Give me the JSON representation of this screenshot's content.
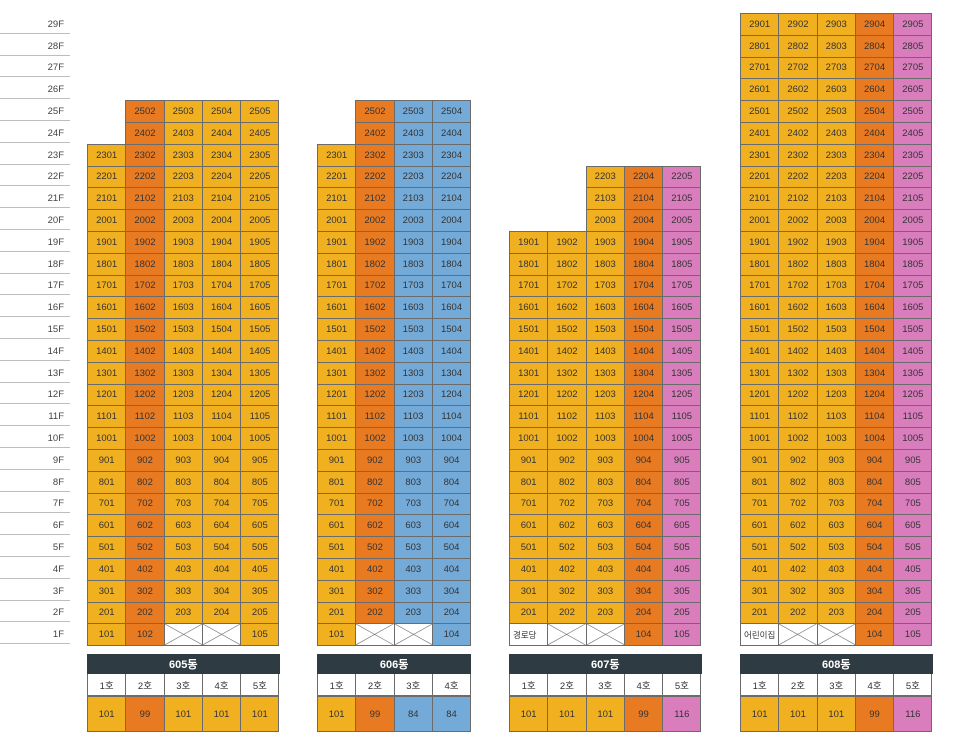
{
  "floors": [
    "29F",
    "28F",
    "27F",
    "26F",
    "25F",
    "24F",
    "23F",
    "22F",
    "21F",
    "20F",
    "19F",
    "18F",
    "17F",
    "16F",
    "15F",
    "14F",
    "13F",
    "12F",
    "11F",
    "10F",
    "9F",
    "8F",
    "7F",
    "6F",
    "5F",
    "4F",
    "3F",
    "2F",
    "1F"
  ],
  "colors": {
    "yellow": "#f1b020",
    "orange": "#e87a22",
    "blue": "#74aad8",
    "pink": "#d97dbd"
  },
  "buildings": [
    {
      "name": "605동",
      "units": [
        {
          "label": "1호",
          "area": "101",
          "color": "yellow",
          "top_floor": 23,
          "floor1": "101"
        },
        {
          "label": "2호",
          "area": "99",
          "color": "orange",
          "top_floor": 25,
          "floor1": "102"
        },
        {
          "label": "3호",
          "area": "101",
          "color": "yellow",
          "top_floor": 25,
          "floor1": null
        },
        {
          "label": "4호",
          "area": "101",
          "color": "yellow",
          "top_floor": 25,
          "floor1": null
        },
        {
          "label": "5호",
          "area": "101",
          "color": "yellow",
          "top_floor": 25,
          "floor1": "105"
        }
      ]
    },
    {
      "name": "606동",
      "units": [
        {
          "label": "1호",
          "area": "101",
          "color": "yellow",
          "top_floor": 23,
          "floor1": "101"
        },
        {
          "label": "2호",
          "area": "99",
          "color": "orange",
          "top_floor": 25,
          "floor1": null
        },
        {
          "label": "3호",
          "area": "84",
          "color": "blue",
          "top_floor": 25,
          "floor1": null
        },
        {
          "label": "4호",
          "area": "84",
          "color": "blue",
          "top_floor": 25,
          "floor1": "104"
        }
      ]
    },
    {
      "name": "607동",
      "facility": "경로당",
      "units": [
        {
          "label": "1호",
          "area": "101",
          "color": "yellow",
          "top_floor": 19,
          "floor1": "facility"
        },
        {
          "label": "2호",
          "area": "101",
          "color": "yellow",
          "top_floor": 19,
          "floor1": null
        },
        {
          "label": "3호",
          "area": "101",
          "color": "yellow",
          "top_floor": 22,
          "floor1": null
        },
        {
          "label": "4호",
          "area": "99",
          "color": "orange",
          "top_floor": 22,
          "floor1": "104"
        },
        {
          "label": "5호",
          "area": "116",
          "color": "pink",
          "top_floor": 22,
          "floor1": "105"
        }
      ]
    },
    {
      "name": "608동",
      "facility": "어린이집",
      "units": [
        {
          "label": "1호",
          "area": "101",
          "color": "yellow",
          "top_floor": 29,
          "floor1": "facility"
        },
        {
          "label": "2호",
          "area": "101",
          "color": "yellow",
          "top_floor": 29,
          "floor1": null
        },
        {
          "label": "3호",
          "area": "101",
          "color": "yellow",
          "top_floor": 29,
          "floor1": null
        },
        {
          "label": "4호",
          "area": "99",
          "color": "orange",
          "top_floor": 29,
          "floor1": "104"
        },
        {
          "label": "5호",
          "area": "116",
          "color": "pink",
          "top_floor": 29,
          "floor1": "105"
        }
      ]
    }
  ]
}
